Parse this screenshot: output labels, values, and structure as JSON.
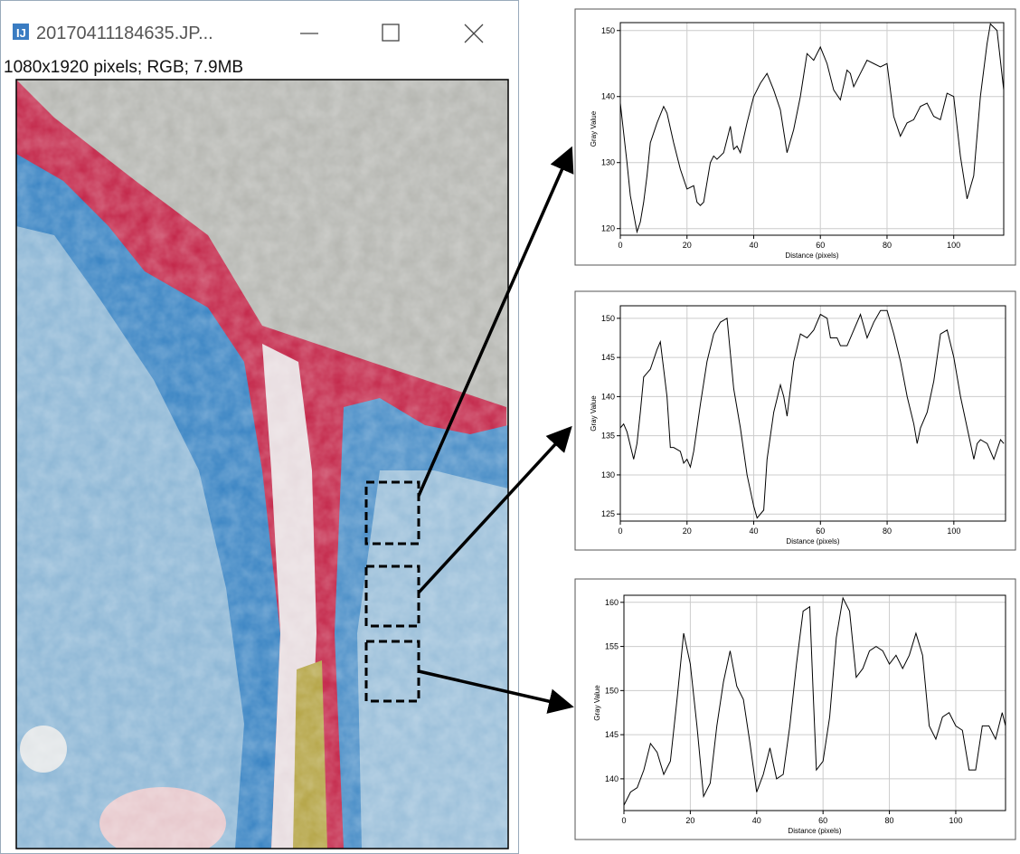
{
  "window": {
    "title": "20170411184635.JP...",
    "info": "1080x1920 pixels; RGB; 7.9MB"
  },
  "chart_data": [
    {
      "type": "line",
      "x_label": "Distance (pixels)",
      "y_label": "Gray Value",
      "color": "#000000",
      "grid": true,
      "xlim": [
        0,
        115
      ],
      "ylim": [
        119,
        151.2
      ],
      "xticks": [
        0,
        20,
        40,
        60,
        80,
        100
      ],
      "yticks": [
        120,
        130,
        140,
        150
      ],
      "x": [
        0,
        2,
        3,
        5,
        6,
        7,
        8,
        9,
        11,
        13,
        14,
        16,
        18,
        20,
        22,
        23,
        24,
        25,
        27,
        28,
        29,
        31,
        33,
        34,
        35,
        36,
        38,
        40,
        42,
        44,
        46,
        48,
        50,
        52,
        54,
        56,
        57,
        58,
        60,
        62,
        64,
        66,
        68,
        69,
        70,
        72,
        74,
        76,
        78,
        80,
        82,
        84,
        86,
        88,
        90,
        92,
        94,
        96,
        98,
        100,
        102,
        104,
        106,
        108,
        110,
        111,
        113,
        115
      ],
      "values": [
        139,
        130,
        125,
        119.5,
        121,
        124,
        128,
        133,
        136,
        138.5,
        137.5,
        133,
        129,
        126,
        126.5,
        124,
        123.5,
        124,
        130,
        131,
        130.5,
        131.5,
        135.5,
        132,
        132.5,
        131.5,
        136,
        140,
        142,
        143.5,
        141,
        138,
        131.5,
        135,
        140,
        146.5,
        146,
        145.5,
        147.5,
        145,
        141,
        139.5,
        144,
        143.5,
        141.5,
        143.5,
        145.5,
        145,
        144.5,
        145,
        137,
        134,
        136,
        136.5,
        138.5,
        139,
        137,
        136.5,
        140.5,
        140,
        131,
        124.5,
        128,
        140,
        148,
        151,
        150,
        141
      ]
    },
    {
      "type": "line",
      "x_label": "Distance (pixels)",
      "y_label": "Gray Value",
      "color": "#000000",
      "grid": true,
      "xlim": [
        0,
        115.5
      ],
      "ylim": [
        124.1,
        151.6
      ],
      "xticks": [
        0,
        20,
        40,
        60,
        80,
        100
      ],
      "yticks": [
        125,
        130,
        135,
        140,
        145,
        150
      ],
      "x": [
        0,
        1,
        2,
        4,
        5,
        6,
        7,
        8,
        9,
        11,
        12,
        13,
        14,
        15,
        16,
        18,
        19,
        20,
        21,
        22,
        24,
        26,
        28,
        30,
        32,
        34,
        36,
        38,
        40,
        41,
        43,
        44,
        46,
        48,
        49,
        50,
        52,
        54,
        56,
        58,
        60,
        62,
        63,
        65,
        66,
        68,
        70,
        72,
        74,
        76,
        78,
        80,
        82,
        84,
        86,
        88,
        89,
        90,
        92,
        94,
        96,
        98,
        100,
        102,
        104,
        106,
        107,
        108,
        110,
        112,
        114,
        115
      ],
      "values": [
        136,
        136.5,
        135.5,
        132,
        134,
        138,
        142.5,
        143,
        143.5,
        146,
        147,
        143.5,
        140,
        133.5,
        133.5,
        133,
        131.5,
        132,
        131,
        133,
        139,
        144.5,
        148,
        149.5,
        150,
        141,
        136,
        130,
        126,
        124.5,
        125.5,
        132,
        138,
        141.5,
        140,
        137.5,
        144.5,
        148,
        147.5,
        148.5,
        150.5,
        150,
        147.5,
        147.5,
        146.5,
        146.5,
        148.5,
        150.5,
        147.5,
        149.5,
        151,
        151,
        148,
        144.5,
        140,
        136.5,
        134,
        136,
        138,
        142,
        148,
        148.5,
        145,
        140,
        136,
        132,
        134,
        134.5,
        134,
        132,
        134.5,
        134
      ]
    },
    {
      "type": "line",
      "x_label": "Distance (pixels)",
      "y_label": "Gray Value",
      "color": "#000000",
      "grid": true,
      "xlim": [
        0,
        115
      ],
      "ylim": [
        136.4,
        160.8
      ],
      "xticks": [
        0,
        20,
        40,
        60,
        80,
        100
      ],
      "yticks": [
        140,
        145,
        150,
        155,
        160
      ],
      "x": [
        0,
        2,
        4,
        6,
        8,
        10,
        12,
        14,
        16,
        18,
        20,
        22,
        24,
        26,
        28,
        30,
        32,
        34,
        36,
        38,
        40,
        42,
        44,
        46,
        48,
        50,
        52,
        54,
        56,
        57,
        58,
        60,
        62,
        64,
        66,
        68,
        70,
        72,
        74,
        76,
        78,
        80,
        82,
        84,
        86,
        88,
        90,
        92,
        94,
        96,
        98,
        100,
        102,
        104,
        106,
        108,
        110,
        112,
        114,
        115
      ],
      "values": [
        137,
        138.5,
        139,
        141,
        144,
        143,
        140.5,
        142,
        149,
        156.5,
        153,
        146,
        138,
        139.5,
        146,
        151,
        154.5,
        150.5,
        149,
        144,
        138.5,
        140.5,
        143.5,
        140,
        140.5,
        146,
        153,
        159,
        159.5,
        150,
        141,
        142,
        147,
        156,
        160.5,
        159,
        151.5,
        152.5,
        154.5,
        155,
        154.5,
        153,
        154,
        152.5,
        154,
        156.5,
        154,
        146,
        144.5,
        147,
        147.5,
        146,
        145.5,
        141,
        141,
        146,
        146,
        144.5,
        147.5,
        146
      ]
    }
  ]
}
